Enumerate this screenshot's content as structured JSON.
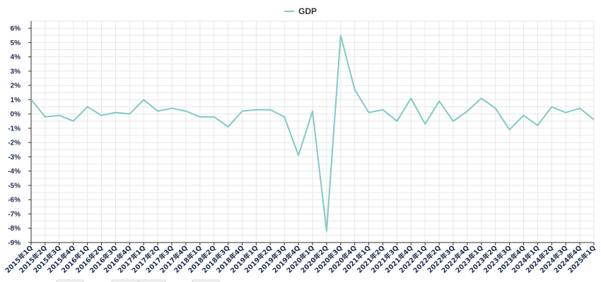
{
  "chart_data": {
    "type": "line",
    "title": "",
    "xlabel": "",
    "ylabel": "",
    "legend": {
      "position": "top-center",
      "entries": [
        "GDP"
      ]
    },
    "grid": true,
    "ylim": [
      -9,
      6.5
    ],
    "yticks": [
      "6%",
      "5%",
      "4%",
      "3%",
      "2%",
      "1%",
      "0%",
      "-1%",
      "-2%",
      "-3%",
      "-4%",
      "-5%",
      "-6%",
      "-7%",
      "-8%",
      "-9%"
    ],
    "ytick_values": [
      6,
      5,
      4,
      3,
      2,
      1,
      0,
      -1,
      -2,
      -3,
      -4,
      -5,
      -6,
      -7,
      -8,
      -9
    ],
    "categories": [
      "2015年1Q",
      "2015年2Q",
      "2015年3Q",
      "2015年4Q",
      "2016年1Q",
      "2016年2Q",
      "2016年3Q",
      "2016年4Q",
      "2017年1Q",
      "2017年2Q",
      "2017年3Q",
      "2017年4Q",
      "2018年1Q",
      "2018年2Q",
      "2018年3Q",
      "2018年4Q",
      "2019年1Q",
      "2019年2Q",
      "2019年3Q",
      "2019年4Q",
      "2020年1Q",
      "2020年2Q",
      "2020年3Q",
      "2020年4Q",
      "2021年1Q",
      "2021年2Q",
      "2021年3Q",
      "2021年4Q",
      "2022年1Q",
      "2022年2Q",
      "2022年3Q",
      "2022年4Q",
      "2023年1Q",
      "2023年2Q",
      "2023年3Q",
      "2023年4Q",
      "2024年1Q",
      "2024年2Q",
      "2024年3Q",
      "2024年4Q",
      "2025年1Q"
    ],
    "series": [
      {
        "name": "GDP",
        "color": "#7ecbc4",
        "values": [
          1.0,
          -0.2,
          -0.1,
          -0.5,
          0.5,
          -0.1,
          0.1,
          0.0,
          1.0,
          0.2,
          0.4,
          0.2,
          -0.2,
          -0.2,
          -0.9,
          0.2,
          0.3,
          0.3,
          -0.2,
          -2.9,
          0.2,
          -8.2,
          5.5,
          1.7,
          0.1,
          0.3,
          -0.5,
          1.1,
          -0.7,
          0.9,
          -0.5,
          0.2,
          1.1,
          0.4,
          -1.1,
          -0.1,
          -0.8,
          0.5,
          0.1,
          0.4,
          -0.4
        ]
      }
    ]
  }
}
